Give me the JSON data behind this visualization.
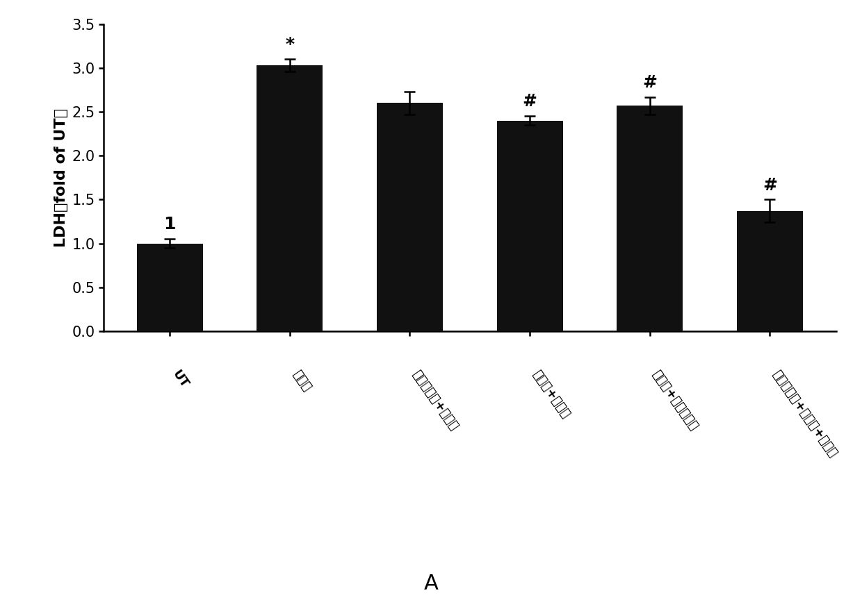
{
  "categories": [
    "UT",
    "酒精组",
    "二型杨梅素+熊果酸",
    "姜黄素+熊果酸",
    "姜黄素+二型杨梅素",
    "二型杨梅素+熊果酸+姜黄素"
  ],
  "values": [
    1.0,
    3.03,
    2.6,
    2.4,
    2.57,
    1.37
  ],
  "errors": [
    0.05,
    0.07,
    0.13,
    0.05,
    0.1,
    0.13
  ],
  "annotations": [
    "1",
    "*",
    "",
    "#",
    "#",
    "#"
  ],
  "bar_color": "#111111",
  "ylabel": "LDH（fold of UT）",
  "xlabel_bottom": "A",
  "ylim": [
    0,
    3.5
  ],
  "yticks": [
    0,
    0.5,
    1.0,
    1.5,
    2.0,
    2.5,
    3.0,
    3.5
  ],
  "background_color": "#ffffff",
  "annotation_fontsize": 18,
  "ylabel_fontsize": 16,
  "tick_fontsize": 15,
  "xlabel_fontsize": 22,
  "bar_width": 0.55,
  "rotation": -55
}
